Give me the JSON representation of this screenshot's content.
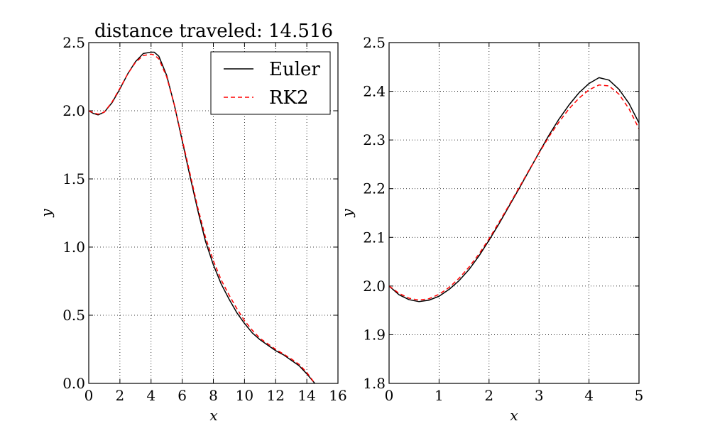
{
  "chart_data": [
    {
      "type": "line",
      "title": "distance traveled: 14.516",
      "xlabel": "x",
      "ylabel": "y",
      "xlim": [
        0,
        16
      ],
      "ylim": [
        0,
        2.5
      ],
      "xticks": [
        "0",
        "2",
        "4",
        "6",
        "8",
        "10",
        "12",
        "14",
        "16"
      ],
      "yticks": [
        "0.0",
        "0.5",
        "1.0",
        "1.5",
        "2.0",
        "2.5"
      ],
      "grid": true,
      "legend_position": "top-right",
      "series": [
        {
          "name": "Euler",
          "color": "#000000",
          "style": "solid",
          "x": [
            0,
            0.3,
            0.6,
            1.0,
            1.5,
            2.0,
            2.5,
            3.0,
            3.5,
            4.0,
            4.2,
            4.5,
            5.0,
            5.5,
            6.0,
            6.5,
            7.0,
            7.5,
            8.0,
            8.5,
            9.0,
            9.5,
            10.0,
            10.5,
            11.0,
            11.5,
            12.0,
            12.5,
            13.0,
            13.5,
            14.0,
            14.516
          ],
          "y": [
            2.0,
            1.98,
            1.97,
            1.99,
            2.06,
            2.16,
            2.27,
            2.36,
            2.42,
            2.43,
            2.43,
            2.4,
            2.26,
            2.04,
            1.78,
            1.52,
            1.27,
            1.04,
            0.87,
            0.73,
            0.62,
            0.52,
            0.44,
            0.37,
            0.32,
            0.28,
            0.24,
            0.21,
            0.17,
            0.13,
            0.07,
            0.0
          ]
        },
        {
          "name": "RK2",
          "color": "#ff0000",
          "style": "dashed",
          "x": [
            0,
            0.3,
            0.6,
            1.0,
            1.5,
            2.0,
            2.5,
            3.0,
            3.5,
            4.0,
            4.2,
            4.5,
            5.0,
            5.5,
            6.0,
            6.5,
            7.0,
            7.5,
            8.0,
            8.5,
            9.0,
            9.5,
            10.0,
            10.5,
            11.0,
            11.5,
            12.0,
            12.5,
            13.0,
            13.5,
            14.0,
            14.516
          ],
          "y": [
            2.0,
            1.985,
            1.975,
            1.99,
            2.065,
            2.165,
            2.27,
            2.355,
            2.405,
            2.415,
            2.41,
            2.38,
            2.25,
            2.04,
            1.79,
            1.54,
            1.29,
            1.07,
            0.9,
            0.76,
            0.65,
            0.55,
            0.46,
            0.39,
            0.33,
            0.29,
            0.25,
            0.215,
            0.18,
            0.14,
            0.08,
            0.0
          ]
        }
      ]
    },
    {
      "type": "line",
      "title": "",
      "xlabel": "x",
      "ylabel": "y",
      "xlim": [
        0,
        5
      ],
      "ylim": [
        1.8,
        2.5
      ],
      "xticks": [
        "0",
        "1",
        "2",
        "3",
        "4",
        "5"
      ],
      "yticks": [
        "1.8",
        "1.9",
        "2.0",
        "2.1",
        "2.2",
        "2.3",
        "2.4",
        "2.5"
      ],
      "grid": true,
      "series": [
        {
          "name": "Euler",
          "color": "#000000",
          "style": "solid",
          "x": [
            0,
            0.2,
            0.4,
            0.6,
            0.8,
            1.0,
            1.2,
            1.4,
            1.6,
            1.8,
            2.0,
            2.2,
            2.4,
            2.6,
            2.8,
            3.0,
            3.2,
            3.4,
            3.6,
            3.8,
            4.0,
            4.2,
            4.4,
            4.6,
            4.8,
            5.0
          ],
          "y": [
            2.0,
            1.982,
            1.972,
            1.968,
            1.971,
            1.979,
            1.993,
            2.011,
            2.034,
            2.062,
            2.094,
            2.128,
            2.164,
            2.2,
            2.237,
            2.274,
            2.31,
            2.343,
            2.372,
            2.397,
            2.416,
            2.428,
            2.423,
            2.404,
            2.375,
            2.335
          ]
        },
        {
          "name": "RK2",
          "color": "#ff0000",
          "style": "dashed",
          "x": [
            0,
            0.2,
            0.4,
            0.6,
            0.8,
            1.0,
            1.2,
            1.4,
            1.6,
            1.8,
            2.0,
            2.2,
            2.4,
            2.6,
            2.8,
            3.0,
            3.2,
            3.4,
            3.6,
            3.8,
            4.0,
            4.2,
            4.4,
            4.6,
            4.8,
            5.0
          ],
          "y": [
            2.0,
            1.985,
            1.975,
            1.971,
            1.974,
            1.983,
            1.997,
            2.016,
            2.039,
            2.066,
            2.097,
            2.131,
            2.166,
            2.202,
            2.238,
            2.273,
            2.307,
            2.337,
            2.364,
            2.386,
            2.403,
            2.413,
            2.411,
            2.394,
            2.364,
            2.323
          ]
        }
      ]
    }
  ]
}
